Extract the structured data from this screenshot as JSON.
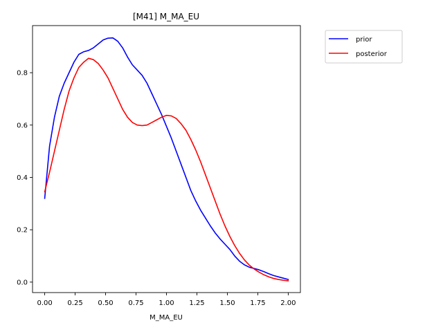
{
  "chart_data": {
    "type": "line",
    "title": "[M41] M_MA_EU",
    "xlabel": "M_MA_EU",
    "ylabel": "",
    "xlim": [
      -0.1,
      2.1
    ],
    "ylim": [
      -0.04,
      0.98
    ],
    "xticks": [
      0.0,
      0.25,
      0.5,
      0.75,
      1.0,
      1.25,
      1.5,
      1.75,
      2.0
    ],
    "xtick_labels": [
      "0.00",
      "0.25",
      "0.50",
      "0.75",
      "1.00",
      "1.25",
      "1.50",
      "1.75",
      "2.00"
    ],
    "yticks": [
      0.0,
      0.2,
      0.4,
      0.6,
      0.8
    ],
    "ytick_labels": [
      "0.0",
      "0.2",
      "0.4",
      "0.6",
      "0.8"
    ],
    "grid": false,
    "legend_position": "outside-top-right",
    "series": [
      {
        "name": "prior",
        "color": "#0000ff",
        "x": [
          0.0,
          0.02,
          0.04,
          0.08,
          0.12,
          0.16,
          0.2,
          0.24,
          0.28,
          0.32,
          0.36,
          0.4,
          0.44,
          0.48,
          0.52,
          0.56,
          0.6,
          0.64,
          0.68,
          0.72,
          0.76,
          0.8,
          0.84,
          0.88,
          0.92,
          0.96,
          1.0,
          1.04,
          1.08,
          1.12,
          1.16,
          1.2,
          1.24,
          1.28,
          1.32,
          1.36,
          1.4,
          1.44,
          1.48,
          1.52,
          1.56,
          1.6,
          1.64,
          1.68,
          1.72,
          1.76,
          1.8,
          1.84,
          1.88,
          1.92,
          1.96,
          2.0
        ],
        "y": [
          0.32,
          0.42,
          0.52,
          0.63,
          0.71,
          0.76,
          0.8,
          0.84,
          0.87,
          0.88,
          0.885,
          0.895,
          0.91,
          0.925,
          0.932,
          0.933,
          0.92,
          0.895,
          0.86,
          0.83,
          0.81,
          0.79,
          0.76,
          0.72,
          0.68,
          0.64,
          0.595,
          0.55,
          0.5,
          0.45,
          0.4,
          0.35,
          0.31,
          0.275,
          0.245,
          0.215,
          0.188,
          0.165,
          0.145,
          0.125,
          0.1,
          0.08,
          0.066,
          0.057,
          0.052,
          0.047,
          0.04,
          0.032,
          0.025,
          0.02,
          0.015,
          0.01
        ]
      },
      {
        "name": "posterior",
        "color": "#ff0000",
        "x": [
          0.0,
          0.04,
          0.08,
          0.12,
          0.16,
          0.2,
          0.24,
          0.28,
          0.32,
          0.36,
          0.4,
          0.44,
          0.48,
          0.52,
          0.56,
          0.6,
          0.64,
          0.68,
          0.72,
          0.76,
          0.8,
          0.84,
          0.88,
          0.92,
          0.96,
          1.0,
          1.04,
          1.08,
          1.12,
          1.16,
          1.2,
          1.24,
          1.28,
          1.32,
          1.36,
          1.4,
          1.44,
          1.48,
          1.52,
          1.56,
          1.6,
          1.64,
          1.68,
          1.72,
          1.76,
          1.8,
          1.84,
          1.88,
          1.92,
          1.96,
          2.0
        ],
        "y": [
          0.345,
          0.42,
          0.5,
          0.58,
          0.66,
          0.73,
          0.78,
          0.82,
          0.84,
          0.855,
          0.85,
          0.835,
          0.81,
          0.78,
          0.74,
          0.7,
          0.66,
          0.63,
          0.61,
          0.6,
          0.598,
          0.6,
          0.61,
          0.62,
          0.63,
          0.637,
          0.635,
          0.625,
          0.605,
          0.58,
          0.545,
          0.505,
          0.46,
          0.41,
          0.36,
          0.31,
          0.26,
          0.215,
          0.175,
          0.14,
          0.11,
          0.085,
          0.065,
          0.05,
          0.038,
          0.028,
          0.02,
          0.014,
          0.01,
          0.007,
          0.005
        ]
      }
    ]
  }
}
